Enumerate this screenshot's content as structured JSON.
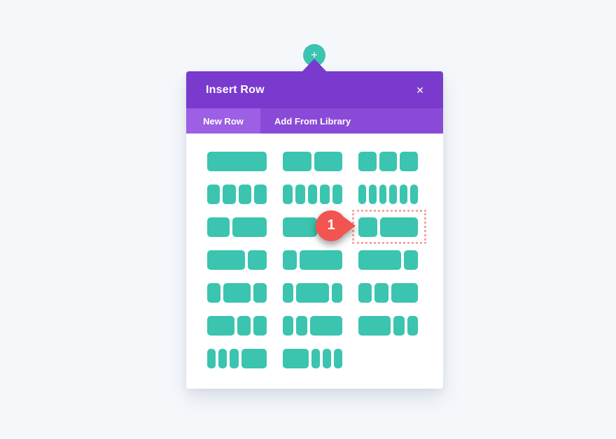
{
  "insert_button": {
    "glyph": "+"
  },
  "modal": {
    "title": "Insert Row",
    "close_glyph": "✕",
    "tabs": [
      {
        "label": "New Row",
        "active": true
      },
      {
        "label": "Add From Library",
        "active": false
      }
    ]
  },
  "marker": {
    "label": "1"
  },
  "layout_grid": {
    "items": [
      {
        "name": "1",
        "columns": [
          1
        ]
      },
      {
        "name": "1-2+1-2",
        "columns": [
          1,
          1
        ]
      },
      {
        "name": "1-3+1-3+1-3",
        "columns": [
          1,
          1,
          1
        ]
      },
      {
        "name": "1-4x4",
        "columns": [
          1,
          1,
          1,
          1
        ]
      },
      {
        "name": "1-5x5",
        "columns": [
          1,
          1,
          1,
          1,
          1
        ]
      },
      {
        "name": "1-6x6",
        "columns": [
          1,
          1,
          1,
          1,
          1,
          1
        ]
      },
      {
        "name": "2-5+3-5",
        "columns": [
          2,
          3
        ]
      },
      {
        "name": "3-5+2-5",
        "columns": [
          3,
          2
        ]
      },
      {
        "name": "1-3+2-3",
        "columns": [
          1,
          2
        ],
        "selected": true
      },
      {
        "name": "2-3+1-3",
        "columns": [
          2,
          1
        ]
      },
      {
        "name": "1-4+3-4",
        "columns": [
          1,
          3
        ]
      },
      {
        "name": "3-4+1-4",
        "columns": [
          3,
          1
        ]
      },
      {
        "name": "1-4+1-2+1-4",
        "columns": [
          1,
          2,
          1
        ]
      },
      {
        "name": "1-5+3-5+1-5",
        "columns": [
          1,
          3,
          1
        ]
      },
      {
        "name": "1-4+1-4+1-2",
        "columns": [
          1,
          1,
          2
        ]
      },
      {
        "name": "1-2+1-4+1-4",
        "columns": [
          2,
          1,
          1
        ]
      },
      {
        "name": "1-5+1-5+3-5",
        "columns": [
          1,
          1,
          3
        ]
      },
      {
        "name": "3-5+1-5+1-5",
        "columns": [
          3,
          1,
          1
        ]
      },
      {
        "name": "1-6+1-6+1-6+1-2",
        "columns": [
          1,
          1,
          1,
          3
        ]
      },
      {
        "name": "1-2+1-6+1-6+1-6",
        "columns": [
          3,
          1,
          1,
          1
        ]
      }
    ]
  },
  "colors": {
    "header_purple": "#7b3ace",
    "tabbar_purple": "#8a4ad8",
    "active_tab_purple": "#9d5fe4",
    "block_teal": "#3bc4af",
    "marker_red": "#f2544f",
    "outline_pink": "#f3a6a6",
    "page_bg": "#f5f8fb",
    "modal_bg": "#ffffff"
  }
}
